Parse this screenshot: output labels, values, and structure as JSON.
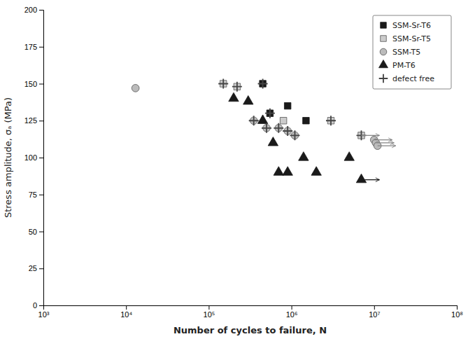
{
  "chart_data": {
    "type": "scatter",
    "xlabel": "Number of cycles to failure, N",
    "ylabel": "Stress amplitude, σₐ (MPa)",
    "log": "x",
    "xlim": [
      1000,
      100000000
    ],
    "xticks": [
      {
        "value": 1000,
        "label": "10³"
      },
      {
        "value": 10000,
        "label": "10⁴"
      },
      {
        "value": 100000,
        "label": "10⁵"
      },
      {
        "value": 1000000,
        "label": "10⁶"
      },
      {
        "value": 10000000,
        "label": "10⁷"
      },
      {
        "value": 100000000,
        "label": "10⁸"
      }
    ],
    "ylim": [
      0,
      200
    ],
    "yticks": [
      0,
      25,
      50,
      75,
      100,
      125,
      150,
      175,
      200
    ],
    "grid": false,
    "legend": "upper right",
    "series": [
      {
        "name": "SSM-Sr-T6",
        "color": "#1a1a1a",
        "marker": "square",
        "x": [
          450000,
          550000,
          900000,
          1500000
        ],
        "values": [
          150,
          130,
          135,
          125
        ]
      },
      {
        "name": "SSM-Sr-T5",
        "color": "#cccccc",
        "marker": "square",
        "x": [
          150000,
          220000,
          800000,
          3000000,
          7000000
        ],
        "values": [
          150,
          148,
          125,
          125,
          115
        ]
      },
      {
        "name": "SSM-T5",
        "color": "#bbbbbb",
        "marker": "circle",
        "x": [
          13000,
          350000,
          500000,
          700000,
          900000,
          1100000,
          10000000,
          10500000,
          11000000
        ],
        "values": [
          147,
          125,
          120,
          120,
          118,
          115,
          112,
          110,
          108
        ]
      },
      {
        "name": "PM-T6",
        "color": "#1a1a1a",
        "marker": "triangle",
        "x": [
          200000,
          300000,
          450000,
          600000,
          700000,
          900000,
          1400000,
          2000000,
          5000000,
          7000000
        ],
        "values": [
          140,
          138,
          125,
          110,
          90,
          90,
          100,
          90,
          100,
          85
        ]
      },
      {
        "name": "defect free",
        "color": "#444444",
        "marker": "plus",
        "x": [
          150000,
          220000,
          450000,
          550000,
          350000,
          500000,
          700000,
          900000,
          1100000,
          3000000,
          7000000
        ],
        "values": [
          150,
          148,
          150,
          130,
          125,
          120,
          120,
          118,
          115,
          125,
          115
        ]
      }
    ],
    "runouts": [
      {
        "x": 10000000,
        "y": 112,
        "color": "#888888"
      },
      {
        "x": 10500000,
        "y": 110,
        "color": "#888888"
      },
      {
        "x": 11000000,
        "y": 108,
        "color": "#888888"
      },
      {
        "x": 7000000,
        "y": 115,
        "color": "#888888"
      },
      {
        "x": 7000000,
        "y": 85,
        "color": "#1a1a1a"
      }
    ]
  }
}
